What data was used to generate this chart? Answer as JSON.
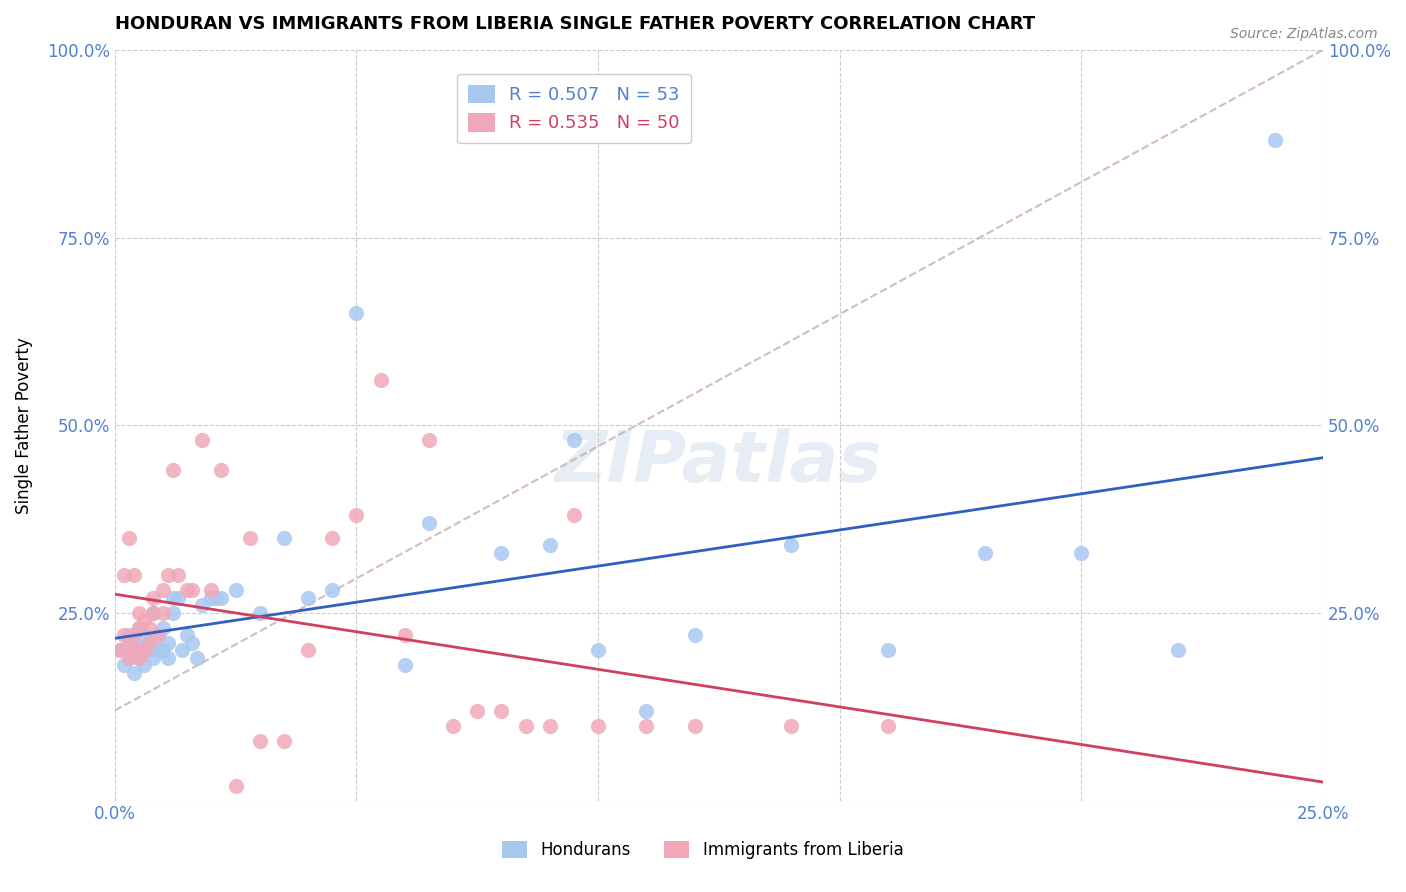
{
  "title": "HONDURAN VS IMMIGRANTS FROM LIBERIA SINGLE FATHER POVERTY CORRELATION CHART",
  "source": "Source: ZipAtlas.com",
  "xlabel_bottom": "",
  "ylabel": "Single Father Poverty",
  "xlim": [
    0.0,
    0.25
  ],
  "ylim": [
    0.0,
    1.0
  ],
  "xticks": [
    0.0,
    0.05,
    0.1,
    0.15,
    0.2,
    0.25
  ],
  "yticks": [
    0.0,
    0.25,
    0.5,
    0.75,
    1.0
  ],
  "xtick_labels": [
    "0.0%",
    "",
    "",
    "",
    "",
    "25.0%"
  ],
  "ytick_labels": [
    "",
    "25.0%",
    "50.0%",
    "75.0%",
    "100.0%"
  ],
  "hondurans_color": "#a8c8f0",
  "liberia_color": "#f0a8b8",
  "trendline_hondurans_color": "#3060c0",
  "trendline_liberia_color": "#d04060",
  "trendline_dashed_color": "#c0a0a0",
  "watermark": "ZIPatlas",
  "legend_R_hondurans": "R = 0.507",
  "legend_N_hondurans": "N = 53",
  "legend_R_liberia": "R = 0.535",
  "legend_N_liberia": "N = 50",
  "hondurans_x": [
    0.001,
    0.002,
    0.003,
    0.003,
    0.004,
    0.004,
    0.005,
    0.005,
    0.005,
    0.006,
    0.006,
    0.006,
    0.007,
    0.007,
    0.008,
    0.008,
    0.009,
    0.009,
    0.01,
    0.01,
    0.011,
    0.011,
    0.012,
    0.012,
    0.013,
    0.014,
    0.015,
    0.016,
    0.017,
    0.018,
    0.02,
    0.021,
    0.022,
    0.025,
    0.03,
    0.035,
    0.04,
    0.045,
    0.05,
    0.06,
    0.065,
    0.08,
    0.09,
    0.095,
    0.1,
    0.11,
    0.12,
    0.14,
    0.16,
    0.18,
    0.2,
    0.22,
    0.24
  ],
  "hondurans_y": [
    0.2,
    0.18,
    0.22,
    0.19,
    0.21,
    0.17,
    0.2,
    0.23,
    0.19,
    0.2,
    0.22,
    0.18,
    0.21,
    0.2,
    0.25,
    0.19,
    0.22,
    0.2,
    0.23,
    0.2,
    0.21,
    0.19,
    0.25,
    0.27,
    0.27,
    0.2,
    0.22,
    0.21,
    0.19,
    0.26,
    0.27,
    0.27,
    0.27,
    0.28,
    0.25,
    0.35,
    0.27,
    0.28,
    0.65,
    0.18,
    0.37,
    0.33,
    0.34,
    0.48,
    0.2,
    0.12,
    0.22,
    0.34,
    0.2,
    0.33,
    0.33,
    0.2,
    0.88
  ],
  "liberia_x": [
    0.001,
    0.002,
    0.002,
    0.003,
    0.003,
    0.003,
    0.004,
    0.004,
    0.004,
    0.005,
    0.005,
    0.005,
    0.006,
    0.006,
    0.007,
    0.007,
    0.008,
    0.008,
    0.009,
    0.01,
    0.01,
    0.011,
    0.012,
    0.013,
    0.015,
    0.016,
    0.018,
    0.02,
    0.022,
    0.025,
    0.028,
    0.03,
    0.035,
    0.04,
    0.045,
    0.05,
    0.055,
    0.06,
    0.065,
    0.07,
    0.075,
    0.08,
    0.085,
    0.09,
    0.095,
    0.1,
    0.11,
    0.12,
    0.14,
    0.16
  ],
  "liberia_y": [
    0.2,
    0.3,
    0.22,
    0.19,
    0.21,
    0.35,
    0.2,
    0.22,
    0.3,
    0.19,
    0.23,
    0.25,
    0.2,
    0.24,
    0.21,
    0.23,
    0.27,
    0.25,
    0.22,
    0.25,
    0.28,
    0.3,
    0.44,
    0.3,
    0.28,
    0.28,
    0.48,
    0.28,
    0.44,
    0.02,
    0.35,
    0.08,
    0.08,
    0.2,
    0.35,
    0.38,
    0.56,
    0.22,
    0.48,
    0.1,
    0.12,
    0.12,
    0.1,
    0.1,
    0.38,
    0.1,
    0.1,
    0.1,
    0.1,
    0.1
  ]
}
